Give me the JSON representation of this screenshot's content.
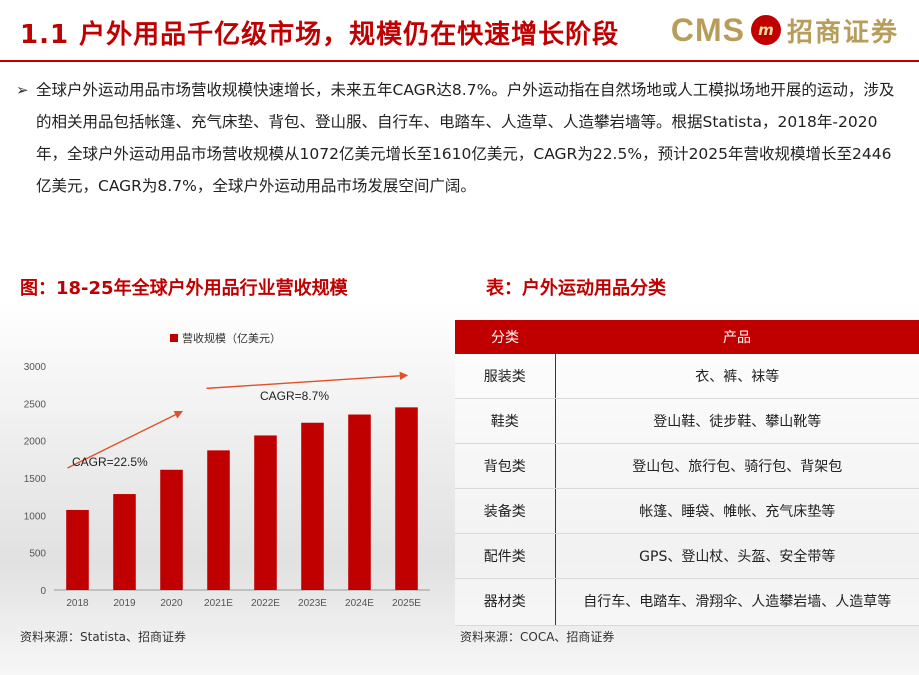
{
  "header": {
    "title": "1.1 户外用品千亿级市场，规模仍在快速增长阶段",
    "logo_text": "CMS",
    "logo_mark": "m",
    "logo_cn": "招商证券"
  },
  "bullet": {
    "arrow": "➢",
    "text": "全球户外运动用品市场营收规模快速增长，未来五年CAGR达8.7%。户外运动指在自然场地或人工模拟场地开展的运动，涉及的相关用品包括帐篷、充气床垫、背包、登山服、自行车、电踏车、人造草、人造攀岩墙等。根据Statista，2018年-2020年，全球户外运动用品市场营收规模从1072亿美元增长至1610亿美元，CAGR为22.5%，预计2025年营收规模增长至2446亿美元，CAGR为8.7%，全球户外运动用品市场发展空间广阔。"
  },
  "figure": {
    "caption": "图：18-25年全球户外用品行业营收规模",
    "source": "资料来源：Statista、招商证券"
  },
  "table": {
    "caption": "表：户外运动用品分类",
    "headers": [
      "分类",
      "产品"
    ],
    "rows": [
      [
        "服装类",
        "衣、裤、袜等"
      ],
      [
        "鞋类",
        "登山鞋、徒步鞋、攀山靴等"
      ],
      [
        "背包类",
        "登山包、旅行包、骑行包、背架包"
      ],
      [
        "装备类",
        "帐篷、睡袋、帷帐、充气床垫等"
      ],
      [
        "配件类",
        "GPS、登山杖、头盔、安全带等"
      ],
      [
        "器材类",
        "自行车、电踏车、滑翔伞、人造攀岩墙、人造草等"
      ]
    ],
    "source": "资料来源：COCA、招商证券"
  },
  "chart_data": {
    "type": "bar",
    "categories": [
      "2018",
      "2019",
      "2020",
      "2021E",
      "2022E",
      "2023E",
      "2024E",
      "2025E"
    ],
    "series": [
      {
        "name": "营收规模（亿美元）",
        "values": [
          1072,
          1285,
          1610,
          1870,
          2070,
          2240,
          2350,
          2446
        ]
      }
    ],
    "ylim": [
      0,
      3000
    ],
    "yticks": [
      "0",
      "500",
      "1000",
      "1500",
      "2000",
      "2500",
      "3000"
    ],
    "annotations": [
      {
        "text": "CAGR=22.5%",
        "from_index": 0,
        "to_index": 2
      },
      {
        "text": "CAGR=8.7%",
        "from_index": 3,
        "to_index": 7
      }
    ],
    "colors": {
      "bar": "#c00000",
      "arrow": "#e0502a"
    },
    "legend": "top",
    "grid": false
  }
}
